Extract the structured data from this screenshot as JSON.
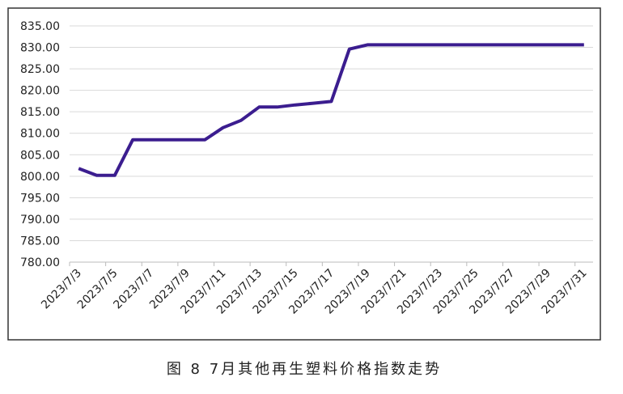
{
  "chart_data": {
    "type": "line",
    "caption": "图 8  7月其他再生塑料价格指数走势",
    "categories": [
      "2023/7/3",
      null,
      "2023/7/5",
      null,
      "2023/7/7",
      null,
      "2023/7/9",
      null,
      "2023/7/11",
      null,
      "2023/7/13",
      null,
      "2023/7/15",
      null,
      "2023/7/17",
      null,
      "2023/7/19",
      null,
      "2023/7/21",
      null,
      "2023/7/23",
      null,
      "2023/7/25",
      null,
      "2023/7/27",
      null,
      "2023/7/29",
      null,
      "2023/7/31"
    ],
    "values": [
      801.8,
      800.2,
      800.2,
      808.5,
      808.5,
      808.5,
      808.5,
      808.5,
      811.3,
      813.0,
      816.1,
      816.1,
      816.6,
      817.0,
      817.4,
      829.6,
      830.6,
      830.6,
      830.6,
      830.6,
      830.6,
      830.6,
      830.6,
      830.6,
      830.6,
      830.6,
      830.6,
      830.6,
      830.6
    ],
    "color": "#3b1d8f",
    "ylim": [
      780,
      835
    ],
    "yticks": [
      {
        "value": 780,
        "label": "780.00"
      },
      {
        "value": 785,
        "label": "785.00"
      },
      {
        "value": 790,
        "label": "790.00"
      },
      {
        "value": 795,
        "label": "795.00"
      },
      {
        "value": 800,
        "label": "800.00"
      },
      {
        "value": 805,
        "label": "805.00"
      },
      {
        "value": 810,
        "label": "810.00"
      },
      {
        "value": 815,
        "label": "815.00"
      },
      {
        "value": 820,
        "label": "820.00"
      },
      {
        "value": 825,
        "label": "825.00"
      },
      {
        "value": 830,
        "label": "830.00"
      },
      {
        "value": 835,
        "label": "835.00"
      }
    ],
    "grid": true
  }
}
